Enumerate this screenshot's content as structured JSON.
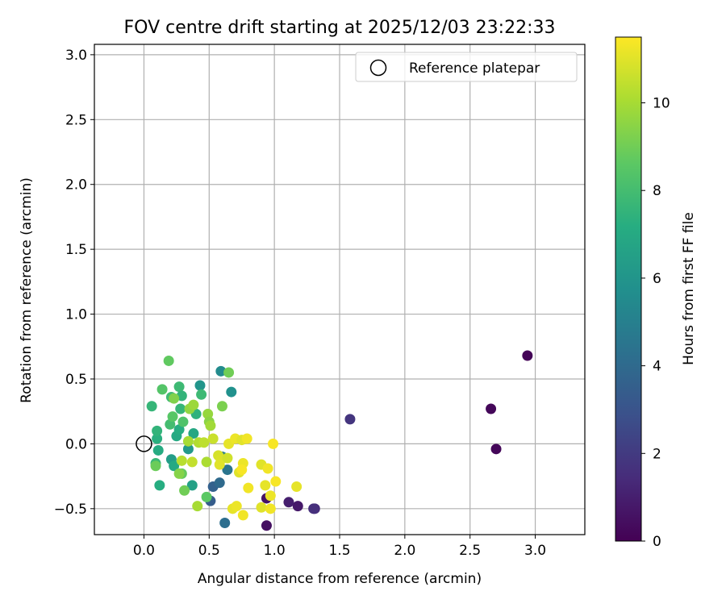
{
  "chart_data": {
    "type": "scatter",
    "title": "FOV centre drift starting at 2025/12/03 23:22:33",
    "xlabel": "Angular distance from reference (arcmin)",
    "ylabel": "Rotation from reference (arcmin)",
    "xlim": [
      -0.38,
      3.38
    ],
    "ylim": [
      -0.7,
      3.08
    ],
    "xticks": [
      0.0,
      0.5,
      1.0,
      1.5,
      2.0,
      2.5,
      3.0
    ],
    "xtick_labels": [
      "0.0",
      "0.5",
      "1.0",
      "1.5",
      "2.0",
      "2.5",
      "3.0"
    ],
    "yticks": [
      -0.5,
      0.0,
      0.5,
      1.0,
      1.5,
      2.0,
      2.5,
      3.0
    ],
    "ytick_labels": [
      "−0.5",
      "0.0",
      "0.5",
      "1.0",
      "1.5",
      "2.0",
      "2.5",
      "3.0"
    ],
    "grid": true,
    "legend": {
      "location": "top-right",
      "entries": [
        "Reference platepar"
      ]
    },
    "reference_point": {
      "x": 0.0,
      "y": 0.0,
      "label": "Reference platepar"
    },
    "colorbar": {
      "label": "Hours from first FF file",
      "min": 0,
      "max": 11.5,
      "ticks": [
        0,
        2,
        4,
        6,
        8,
        10
      ],
      "tick_labels": [
        "0",
        "2",
        "4",
        "6",
        "8",
        "10"
      ],
      "colormap": "viridis"
    },
    "points": [
      {
        "x": 2.94,
        "y": 0.68,
        "h": 0.1
      },
      {
        "x": 2.66,
        "y": 0.27,
        "h": 0.2
      },
      {
        "x": 2.7,
        "y": -0.04,
        "h": 0.2
      },
      {
        "x": 1.58,
        "y": 0.19,
        "h": 1.8
      },
      {
        "x": 1.31,
        "y": -0.5,
        "h": 1.4
      },
      {
        "x": 1.3,
        "y": -0.5,
        "h": 1.6
      },
      {
        "x": 1.18,
        "y": -0.48,
        "h": 0.8
      },
      {
        "x": 1.11,
        "y": -0.45,
        "h": 1.0
      },
      {
        "x": 0.94,
        "y": -0.63,
        "h": 0.5
      },
      {
        "x": 0.94,
        "y": -0.42,
        "h": 0.6
      },
      {
        "x": 0.62,
        "y": -0.61,
        "h": 4.2
      },
      {
        "x": 0.51,
        "y": -0.44,
        "h": 3.4
      },
      {
        "x": 0.53,
        "y": -0.33,
        "h": 3.6
      },
      {
        "x": 0.58,
        "y": -0.3,
        "h": 4.0
      },
      {
        "x": 0.64,
        "y": -0.2,
        "h": 4.5
      },
      {
        "x": 0.6,
        "y": -0.1,
        "h": 4.8
      },
      {
        "x": 0.59,
        "y": 0.56,
        "h": 5.5
      },
      {
        "x": 0.67,
        "y": 0.4,
        "h": 5.8
      },
      {
        "x": 0.43,
        "y": 0.45,
        "h": 6.0
      },
      {
        "x": 0.37,
        "y": -0.32,
        "h": 6.6
      },
      {
        "x": 0.34,
        "y": -0.04,
        "h": 6.2
      },
      {
        "x": 0.21,
        "y": -0.12,
        "h": 6.4
      },
      {
        "x": 0.23,
        "y": -0.17,
        "h": 7.0
      },
      {
        "x": 0.12,
        "y": -0.32,
        "h": 7.2
      },
      {
        "x": 0.11,
        "y": -0.05,
        "h": 7.1
      },
      {
        "x": 0.1,
        "y": 0.04,
        "h": 7.3
      },
      {
        "x": 0.1,
        "y": 0.1,
        "h": 7.5
      },
      {
        "x": 0.09,
        "y": -0.15,
        "h": 7.7
      },
      {
        "x": 0.06,
        "y": 0.29,
        "h": 7.6
      },
      {
        "x": 0.25,
        "y": 0.06,
        "h": 7.0
      },
      {
        "x": 0.27,
        "y": 0.11,
        "h": 7.2
      },
      {
        "x": 0.38,
        "y": 0.08,
        "h": 6.9
      },
      {
        "x": 0.4,
        "y": 0.23,
        "h": 7.4
      },
      {
        "x": 0.44,
        "y": 0.38,
        "h": 7.8
      },
      {
        "x": 0.28,
        "y": 0.27,
        "h": 7.6
      },
      {
        "x": 0.21,
        "y": 0.36,
        "h": 7.9
      },
      {
        "x": 0.27,
        "y": 0.44,
        "h": 7.8
      },
      {
        "x": 0.29,
        "y": 0.37,
        "h": 7.5
      },
      {
        "x": 0.2,
        "y": 0.15,
        "h": 8.0
      },
      {
        "x": 0.3,
        "y": 0.17,
        "h": 8.3
      },
      {
        "x": 0.22,
        "y": 0.21,
        "h": 8.5
      },
      {
        "x": 0.14,
        "y": 0.42,
        "h": 8.4
      },
      {
        "x": 0.19,
        "y": 0.64,
        "h": 8.7
      },
      {
        "x": 0.65,
        "y": 0.55,
        "h": 9.0
      },
      {
        "x": 0.6,
        "y": 0.29,
        "h": 9.2
      },
      {
        "x": 0.29,
        "y": -0.23,
        "h": 8.8
      },
      {
        "x": 0.31,
        "y": -0.36,
        "h": 9.0
      },
      {
        "x": 0.48,
        "y": -0.41,
        "h": 8.6
      },
      {
        "x": 0.09,
        "y": -0.17,
        "h": 8.9
      },
      {
        "x": 0.27,
        "y": -0.23,
        "h": 9.4
      },
      {
        "x": 0.23,
        "y": 0.35,
        "h": 9.3
      },
      {
        "x": 0.35,
        "y": 0.27,
        "h": 9.6
      },
      {
        "x": 0.38,
        "y": 0.3,
        "h": 9.8
      },
      {
        "x": 0.49,
        "y": 0.23,
        "h": 9.7
      },
      {
        "x": 0.5,
        "y": 0.17,
        "h": 9.5
      },
      {
        "x": 0.51,
        "y": 0.14,
        "h": 9.9
      },
      {
        "x": 0.34,
        "y": 0.02,
        "h": 10.0
      },
      {
        "x": 0.42,
        "y": 0.01,
        "h": 10.2
      },
      {
        "x": 0.46,
        "y": 0.01,
        "h": 10.4
      },
      {
        "x": 0.53,
        "y": 0.04,
        "h": 10.6
      },
      {
        "x": 0.29,
        "y": -0.13,
        "h": 10.3
      },
      {
        "x": 0.37,
        "y": -0.14,
        "h": 10.5
      },
      {
        "x": 0.48,
        "y": -0.14,
        "h": 10.1
      },
      {
        "x": 0.41,
        "y": -0.48,
        "h": 10.0
      },
      {
        "x": 0.57,
        "y": -0.09,
        "h": 10.8
      },
      {
        "x": 0.59,
        "y": -0.12,
        "h": 10.9
      },
      {
        "x": 0.64,
        "y": -0.11,
        "h": 10.7
      },
      {
        "x": 0.58,
        "y": -0.16,
        "h": 11.0
      },
      {
        "x": 0.65,
        "y": 0.0,
        "h": 11.1
      },
      {
        "x": 0.7,
        "y": 0.04,
        "h": 11.2
      },
      {
        "x": 0.75,
        "y": 0.03,
        "h": 11.0
      },
      {
        "x": 0.79,
        "y": 0.04,
        "h": 11.3
      },
      {
        "x": 0.76,
        "y": -0.15,
        "h": 11.2
      },
      {
        "x": 0.73,
        "y": -0.22,
        "h": 11.0
      },
      {
        "x": 0.75,
        "y": -0.2,
        "h": 11.4
      },
      {
        "x": 0.8,
        "y": -0.34,
        "h": 11.3
      },
      {
        "x": 0.68,
        "y": -0.5,
        "h": 11.1
      },
      {
        "x": 0.71,
        "y": -0.48,
        "h": 11.2
      },
      {
        "x": 0.76,
        "y": -0.55,
        "h": 11.3
      },
      {
        "x": 0.9,
        "y": -0.16,
        "h": 11.0
      },
      {
        "x": 0.95,
        "y": -0.19,
        "h": 11.3
      },
      {
        "x": 0.93,
        "y": -0.32,
        "h": 11.1
      },
      {
        "x": 1.01,
        "y": -0.29,
        "h": 11.4
      },
      {
        "x": 0.97,
        "y": -0.4,
        "h": 11.2
      },
      {
        "x": 0.9,
        "y": -0.49,
        "h": 11.0
      },
      {
        "x": 0.97,
        "y": -0.5,
        "h": 11.3
      },
      {
        "x": 0.99,
        "y": 0.0,
        "h": 11.4
      },
      {
        "x": 1.17,
        "y": -0.33,
        "h": 11.1
      }
    ]
  }
}
